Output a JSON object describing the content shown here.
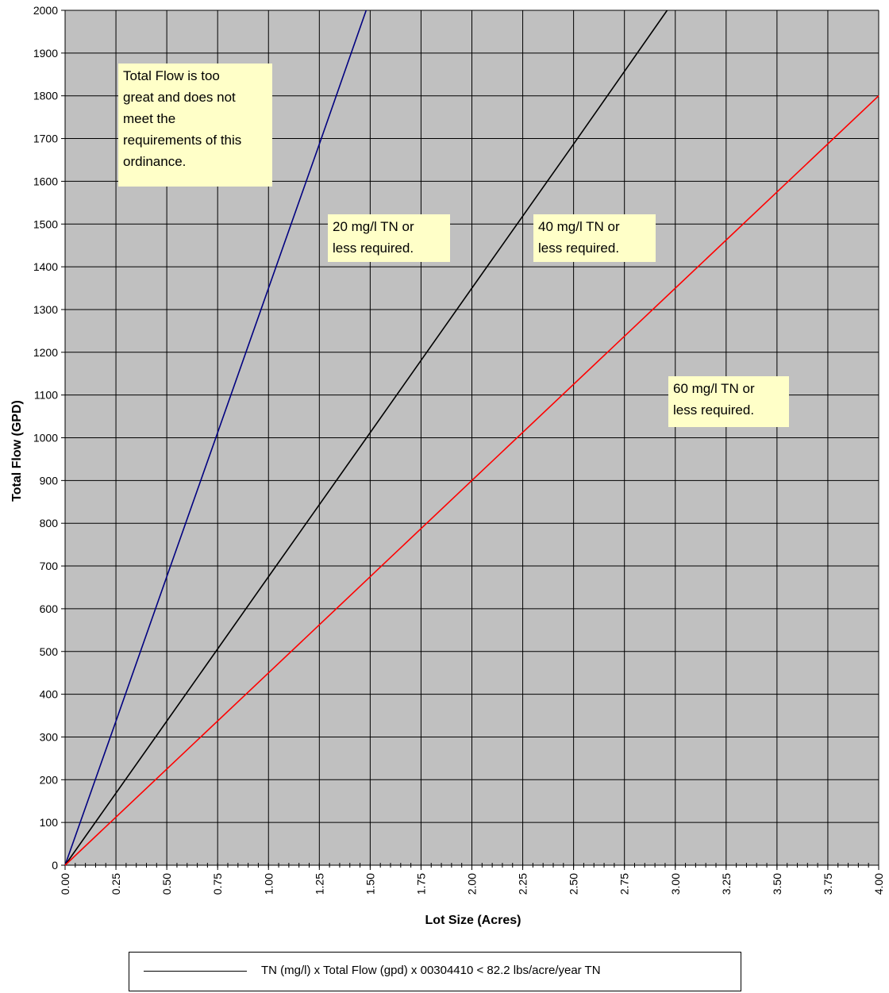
{
  "chart_data": {
    "type": "line",
    "xlabel": "Lot Size (Acres)",
    "ylabel": "Total Flow (GPD)",
    "xlim": [
      0,
      4
    ],
    "ylim": [
      0,
      2000
    ],
    "x_ticks": [
      "0.00",
      "0.25",
      "0.50",
      "0.75",
      "1.00",
      "1.25",
      "1.50",
      "1.75",
      "2.00",
      "2.25",
      "2.50",
      "2.75",
      "3.00",
      "3.25",
      "3.50",
      "3.75",
      "4.00"
    ],
    "y_ticks": [
      "0",
      "100",
      "200",
      "300",
      "400",
      "500",
      "600",
      "700",
      "800",
      "900",
      "1000",
      "1100",
      "1200",
      "1300",
      "1400",
      "1500",
      "1600",
      "1700",
      "1800",
      "1900",
      "2000"
    ],
    "grid": true,
    "plot_background": "#c0c0c0",
    "series": [
      {
        "color": "#000080",
        "x": [
          0,
          0.25,
          0.5,
          0.75,
          1.0,
          1.25,
          1.48
        ],
        "y": [
          0,
          337,
          675,
          1012,
          1350,
          1687,
          2000
        ]
      },
      {
        "color": "#000000",
        "x": [
          0,
          0.5,
          1.0,
          1.5,
          2.0,
          2.5,
          2.96
        ],
        "y": [
          0,
          337,
          675,
          1012,
          1350,
          1687,
          2000
        ]
      },
      {
        "color": "#ff0000",
        "x": [
          0,
          1.0,
          2.0,
          3.0,
          4.0
        ],
        "y": [
          0,
          450,
          900,
          1350,
          1800
        ]
      }
    ],
    "annotations": [
      {
        "lines": [
          "Total Flow is too",
          "great and does not",
          "meet the",
          "requirements of this",
          "ordinance."
        ]
      },
      {
        "lines": [
          "20 mg/l TN or",
          "less required."
        ]
      },
      {
        "lines": [
          "40 mg/l TN or",
          "less required."
        ]
      },
      {
        "lines": [
          "60 mg/l TN or",
          "less required."
        ]
      }
    ],
    "legend": {
      "position": "bottom",
      "text": "TN (mg/l) x Total Flow (gpd) x 00304410  < 82.2 lbs/acre/year TN",
      "line_color": "#000000"
    }
  }
}
